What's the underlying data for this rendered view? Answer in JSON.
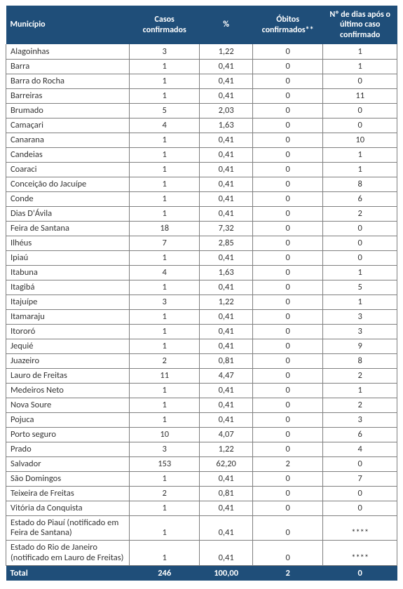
{
  "table": {
    "headers": {
      "municipio": "Município",
      "casos": "Casos confirmados",
      "pct": "%",
      "obitos": "Óbitos confirmados**",
      "dias": "Nº de dias após o último caso confirmado"
    },
    "header_bg": "#1f4e79",
    "header_fg": "#ffffff",
    "border_color": "#7f7f7f",
    "body_fontsize": 12.5,
    "header_fontsize": 12,
    "rows": [
      {
        "municipio": "Alagoinhas",
        "casos": "3",
        "pct": "1,22",
        "obitos": "0",
        "dias": "1"
      },
      {
        "municipio": "Barra",
        "casos": "1",
        "pct": "0,41",
        "obitos": "0",
        "dias": "1"
      },
      {
        "municipio": "Barra do Rocha",
        "casos": "1",
        "pct": "0,41",
        "obitos": "0",
        "dias": "0"
      },
      {
        "municipio": "Barreiras",
        "casos": "1",
        "pct": "0,41",
        "obitos": "0",
        "dias": "11"
      },
      {
        "municipio": "Brumado",
        "casos": "5",
        "pct": "2,03",
        "obitos": "0",
        "dias": "0"
      },
      {
        "municipio": "Camaçari",
        "casos": "4",
        "pct": "1,63",
        "obitos": "0",
        "dias": "0"
      },
      {
        "municipio": "Canarana",
        "casos": "1",
        "pct": "0,41",
        "obitos": "0",
        "dias": "10"
      },
      {
        "municipio": "Candeias",
        "casos": "1",
        "pct": "0,41",
        "obitos": "0",
        "dias": "1"
      },
      {
        "municipio": "Coaraci",
        "casos": "1",
        "pct": "0,41",
        "obitos": "0",
        "dias": "1"
      },
      {
        "municipio": "Conceição do Jacuípe",
        "casos": "1",
        "pct": "0,41",
        "obitos": "0",
        "dias": "8"
      },
      {
        "municipio": "Conde",
        "casos": "1",
        "pct": "0,41",
        "obitos": "0",
        "dias": "6"
      },
      {
        "municipio": "Dias D'Ávila",
        "casos": "1",
        "pct": "0,41",
        "obitos": "0",
        "dias": "2"
      },
      {
        "municipio": "Feira de Santana",
        "casos": "18",
        "pct": "7,32",
        "obitos": "0",
        "dias": "0"
      },
      {
        "municipio": "Ilhéus",
        "casos": "7",
        "pct": "2,85",
        "obitos": "0",
        "dias": "0"
      },
      {
        "municipio": "Ipiaú",
        "casos": "1",
        "pct": "0,41",
        "obitos": "0",
        "dias": "0"
      },
      {
        "municipio": "Itabuna",
        "casos": "4",
        "pct": "1,63",
        "obitos": "0",
        "dias": "1"
      },
      {
        "municipio": "Itagibá",
        "casos": "1",
        "pct": "0,41",
        "obitos": "0",
        "dias": "5"
      },
      {
        "municipio": "Itajuípe",
        "casos": "3",
        "pct": "1,22",
        "obitos": "0",
        "dias": "1"
      },
      {
        "municipio": "Itamaraju",
        "casos": "1",
        "pct": "0,41",
        "obitos": "0",
        "dias": "3"
      },
      {
        "municipio": "Itororó",
        "casos": "1",
        "pct": "0,41",
        "obitos": "0",
        "dias": "3"
      },
      {
        "municipio": "Jequié",
        "casos": "1",
        "pct": "0,41",
        "obitos": "0",
        "dias": "9"
      },
      {
        "municipio": "Juazeiro",
        "casos": "2",
        "pct": "0,81",
        "obitos": "0",
        "dias": "8"
      },
      {
        "municipio": "Lauro de Freitas",
        "casos": "11",
        "pct": "4,47",
        "obitos": "0",
        "dias": "2"
      },
      {
        "municipio": "Medeiros Neto",
        "casos": "1",
        "pct": "0,41",
        "obitos": "0",
        "dias": "1"
      },
      {
        "municipio": "Nova Soure",
        "casos": "1",
        "pct": "0,41",
        "obitos": "0",
        "dias": "2"
      },
      {
        "municipio": "Pojuca",
        "casos": "1",
        "pct": "0,41",
        "obitos": "0",
        "dias": "3"
      },
      {
        "municipio": "Porto seguro",
        "casos": "10",
        "pct": "4,07",
        "obitos": "0",
        "dias": "6"
      },
      {
        "municipio": "Prado",
        "casos": "3",
        "pct": "1,22",
        "obitos": "0",
        "dias": "4"
      },
      {
        "municipio": "Salvador",
        "casos": "153",
        "pct": "62,20",
        "obitos": "2",
        "dias": "0"
      },
      {
        "municipio": "São Domingos",
        "casos": "1",
        "pct": "0,41",
        "obitos": "0",
        "dias": "7"
      },
      {
        "municipio": "Teixeira de Freitas",
        "casos": "2",
        "pct": "0,81",
        "obitos": "0",
        "dias": "0"
      },
      {
        "municipio": "Vitória da Conquista",
        "casos": "1",
        "pct": "0,41",
        "obitos": "0",
        "dias": "0"
      },
      {
        "municipio": "Estado do Piauí (notificado em Feira de Santana)",
        "casos": "1",
        "pct": "0,41",
        "obitos": "0",
        "dias": "****",
        "multiline": true
      },
      {
        "municipio": "Estado do Rio de Janeiro (notificado em Lauro de Freitas)",
        "casos": "1",
        "pct": "0,41",
        "obitos": "0",
        "dias": "****",
        "multiline": true
      }
    ],
    "total": {
      "label": "Total",
      "casos": "246",
      "pct": "100,00",
      "obitos": "2",
      "dias": "0"
    }
  }
}
